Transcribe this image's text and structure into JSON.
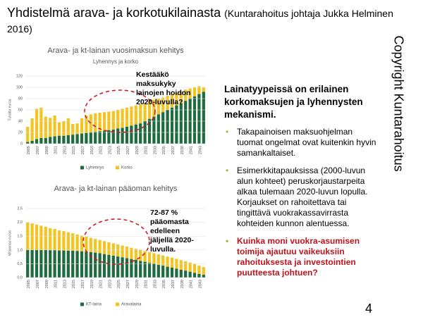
{
  "slide": {
    "title": "Yhdistelmä arava- ja korkotukilainasta",
    "source": "(Kuntarahoitus johtaja Jukka Helminen 2016)",
    "heading": "Lainatyypeissä on erilainen korkomaksujen ja lyhennysten mekanismi.",
    "bullets": [
      "Takapainoisen maksuohjelman tuomat ongelmat ovat kuitenkin hyvin samankaltaiset.",
      "Esimerkkitapauksissa (2000-luvun alun kohteet) peruskorjaustarpeita alkaa tulemaan 2020-luvun lopulla. Korjaukset on rahoitettava tai tingittävä vuokrakassavirrasta kohteiden kunnon alentuessa.",
      "Kuinka moni vuokra-asumisen toimija ajautuu vaikeuksiin rahoituksesta ja investointien puutteesta johtuen?"
    ],
    "copyright": "Copyright Kuntarahoitus",
    "page": "4"
  },
  "chart_data": [
    {
      "type": "bar",
      "stacked": true,
      "title": "Arava- ja kt-lainan vuosimaksun kehitys",
      "subtitle": "Lyhennys ja korko",
      "ylabel": "Tuhatta euroa",
      "annotation": "Kestääkö maksukyky lainojen hoidon 2020-luvulla?",
      "categories": [
        "2005",
        null,
        "2007",
        null,
        "2009",
        null,
        "2011",
        null,
        "2013",
        null,
        "2015",
        null,
        "2017",
        null,
        "2019",
        null,
        "2021",
        null,
        "2023",
        null,
        "2025",
        null,
        "2027",
        null,
        "2029",
        null,
        "2031",
        null,
        "2033",
        null,
        "2035",
        null,
        "2037",
        null,
        "2039",
        null,
        "2041",
        null,
        "2043",
        null
      ],
      "series": [
        {
          "name": "Lyhennys",
          "color": "#1f6b3f",
          "values": [
            3,
            5,
            8,
            10,
            10,
            12,
            13,
            14,
            14,
            15,
            16,
            17,
            18,
            19,
            20,
            21,
            22,
            23,
            24,
            25,
            27,
            28,
            30,
            32,
            34,
            36,
            40,
            44,
            48,
            52,
            56,
            60,
            64,
            68,
            72,
            76,
            80,
            84,
            88,
            92
          ]
        },
        {
          "name": "Korko",
          "color": "#f2c421",
          "values": [
            27,
            40,
            54,
            54,
            38,
            34,
            37,
            24,
            26,
            30,
            19,
            19,
            27,
            31,
            32,
            33,
            33,
            33,
            33,
            33,
            33,
            34,
            34,
            34,
            34,
            34,
            32,
            31,
            30,
            28,
            26,
            25,
            24,
            22,
            21,
            20,
            18,
            16,
            14,
            8
          ]
        }
      ],
      "ylim": [
        0,
        120
      ],
      "yticks": [
        0,
        20,
        40,
        60,
        80,
        100,
        120
      ],
      "grid": true,
      "legend": "bottom"
    },
    {
      "type": "bar",
      "stacked": true,
      "title": "Arava- ja kt-lainan pääoman kehitys",
      "ylabel": "Miljoonaa euroa",
      "annotation": "72-87 % pääomasta edelleen jäljellä 2020-luvulla.",
      "categories": [
        "2005",
        null,
        "2007",
        null,
        "2009",
        null,
        "2011",
        null,
        "2013",
        null,
        "2015",
        null,
        "2017",
        null,
        "2019",
        null,
        "2021",
        null,
        "2023",
        null,
        "2025",
        null,
        "2027",
        null,
        "2029",
        null,
        "2031",
        null,
        "2033",
        null,
        "2035",
        null,
        "2037",
        null,
        "2039",
        null,
        "2041",
        null,
        "2043",
        null
      ],
      "series": [
        {
          "name": "KT-laina",
          "color": "#1f6b3f",
          "values": [
            1.0,
            1.0,
            1.0,
            1.0,
            1.0,
            0.99,
            0.99,
            0.98,
            0.98,
            0.97,
            0.97,
            0.96,
            0.95,
            0.94,
            0.92,
            0.9,
            0.88,
            0.85,
            0.82,
            0.79,
            0.76,
            0.73,
            0.7,
            0.67,
            0.64,
            0.6,
            0.57,
            0.53,
            0.5,
            0.46,
            0.43,
            0.39,
            0.36,
            0.32,
            0.28,
            0.25,
            0.21,
            0.17,
            0.13,
            0.1
          ]
        },
        {
          "name": "Aravalaina",
          "color": "#f2c421",
          "values": [
            1.0,
            0.96,
            0.92,
            0.88,
            0.84,
            0.8,
            0.77,
            0.73,
            0.7,
            0.67,
            0.63,
            0.6,
            0.57,
            0.54,
            0.52,
            0.5,
            0.48,
            0.47,
            0.46,
            0.45,
            0.44,
            0.43,
            0.42,
            0.41,
            0.4,
            0.4,
            0.39,
            0.39,
            0.38,
            0.38,
            0.37,
            0.37,
            0.36,
            0.36,
            0.35,
            0.34,
            0.33,
            0.32,
            0.3,
            0.28
          ]
        }
      ],
      "ylim": [
        0,
        2.5
      ],
      "yticks": [
        {
          "value": 0,
          "label": "0,0"
        },
        {
          "value": 0.5,
          "label": "0,5"
        },
        {
          "value": 1,
          "label": "1,0"
        },
        {
          "value": 1.5,
          "label": "1,5"
        },
        {
          "value": 2,
          "label": "2,0"
        },
        {
          "value": 2.5,
          "label": "2,5"
        }
      ],
      "grid": true,
      "legend": "bottom"
    }
  ]
}
